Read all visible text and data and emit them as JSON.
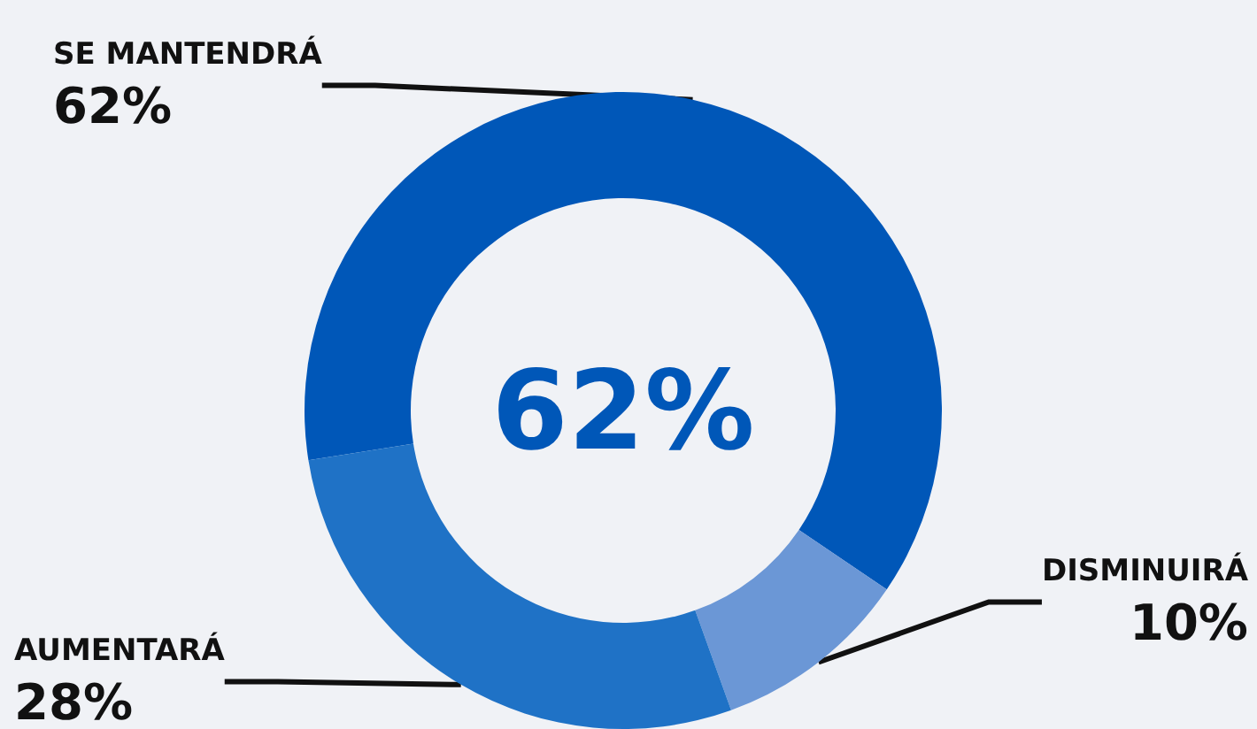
{
  "chart_data": {
    "type": "donut",
    "categories": [
      "SE MANTENDRÁ",
      "DISMINUIRÁ",
      "AUMENTARÁ"
    ],
    "values": [
      62,
      10,
      28
    ],
    "value_labels": [
      "62%",
      "10%",
      "28%"
    ],
    "colors": [
      "#0057b8",
      "#6b97d6",
      "#1f72c6"
    ],
    "annotations": [
      "62%"
    ],
    "legend": false
  }
}
